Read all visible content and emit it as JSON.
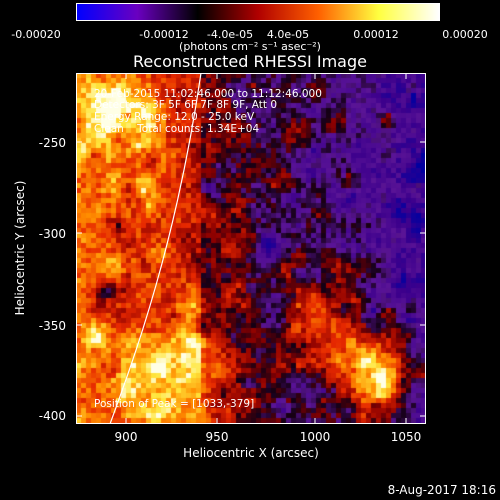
{
  "colorbar": {
    "ticks": [
      "-0.00020",
      "-0.00012",
      "-4.0e-05",
      "4.0e-05",
      "0.00012",
      "0.00020"
    ],
    "units": "(photons cm⁻² s⁻¹ asec⁻²)",
    "colors": [
      "#0000ff",
      "#6a00c0",
      "#000000",
      "#b00000",
      "#ff6000",
      "#ffff40",
      "#ffffff"
    ]
  },
  "title": "Reconstructed RHESSI Image",
  "info": {
    "time_range": "20-Feb-2015 11:02:46.000 to 11:12:46.000",
    "detectors": "Detectors: 3F 5F 6F 7F 8F 9F, Att 0",
    "energy": "Energy Range: 12.0 - 25.0 keV",
    "method": "Clean    Total counts: 1.34E+04"
  },
  "peak_label": "Position of Peak = [1033,-379]",
  "axes": {
    "x_title": "Heliocentric X (arcsec)",
    "y_title": "Heliocentric Y (arcsec)",
    "x_ticks": [
      "900",
      "950",
      "1000",
      "1050"
    ],
    "y_ticks": [
      "-250",
      "-300",
      "-350",
      "-400"
    ],
    "xlim": [
      868,
      1062
    ],
    "ylim": [
      -404,
      -210
    ]
  },
  "footer": "8-Aug-2017 18:16"
}
